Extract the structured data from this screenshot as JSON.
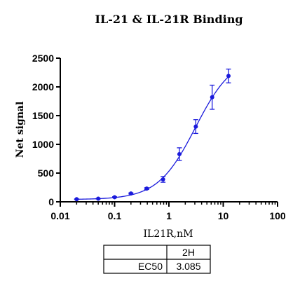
{
  "chart_data": {
    "type": "scatter",
    "title": "IL-21 & IL-21R Binding",
    "xlabel": "IL21R,nM",
    "ylabel": "Net signal",
    "xscale": "log",
    "xlim": [
      0.01,
      100
    ],
    "ylim": [
      0,
      2500
    ],
    "xticks": [
      0.01,
      0.1,
      1,
      10,
      100
    ],
    "xtick_labels": [
      "0.01",
      "0.1",
      "1",
      "10",
      "100"
    ],
    "yticks": [
      0,
      500,
      1000,
      1500,
      2000,
      2500
    ],
    "ytick_labels": [
      "0",
      "500",
      "1000",
      "1500",
      "2000",
      "2500"
    ],
    "series": [
      {
        "color": "#1a1adc",
        "x": [
          0.02,
          0.05,
          0.1,
          0.2,
          0.39,
          0.78,
          1.56,
          3.125,
          6.25,
          12.5
        ],
        "y": [
          45,
          55,
          80,
          145,
          230,
          390,
          830,
          1310,
          1820,
          2190
        ],
        "error": [
          5,
          5,
          8,
          10,
          15,
          50,
          110,
          120,
          210,
          120
        ],
        "fit": true
      }
    ],
    "grid": false
  },
  "table": {
    "header": [
      "",
      "2H"
    ],
    "rows": [
      [
        "EC50",
        "3.085"
      ]
    ]
  }
}
